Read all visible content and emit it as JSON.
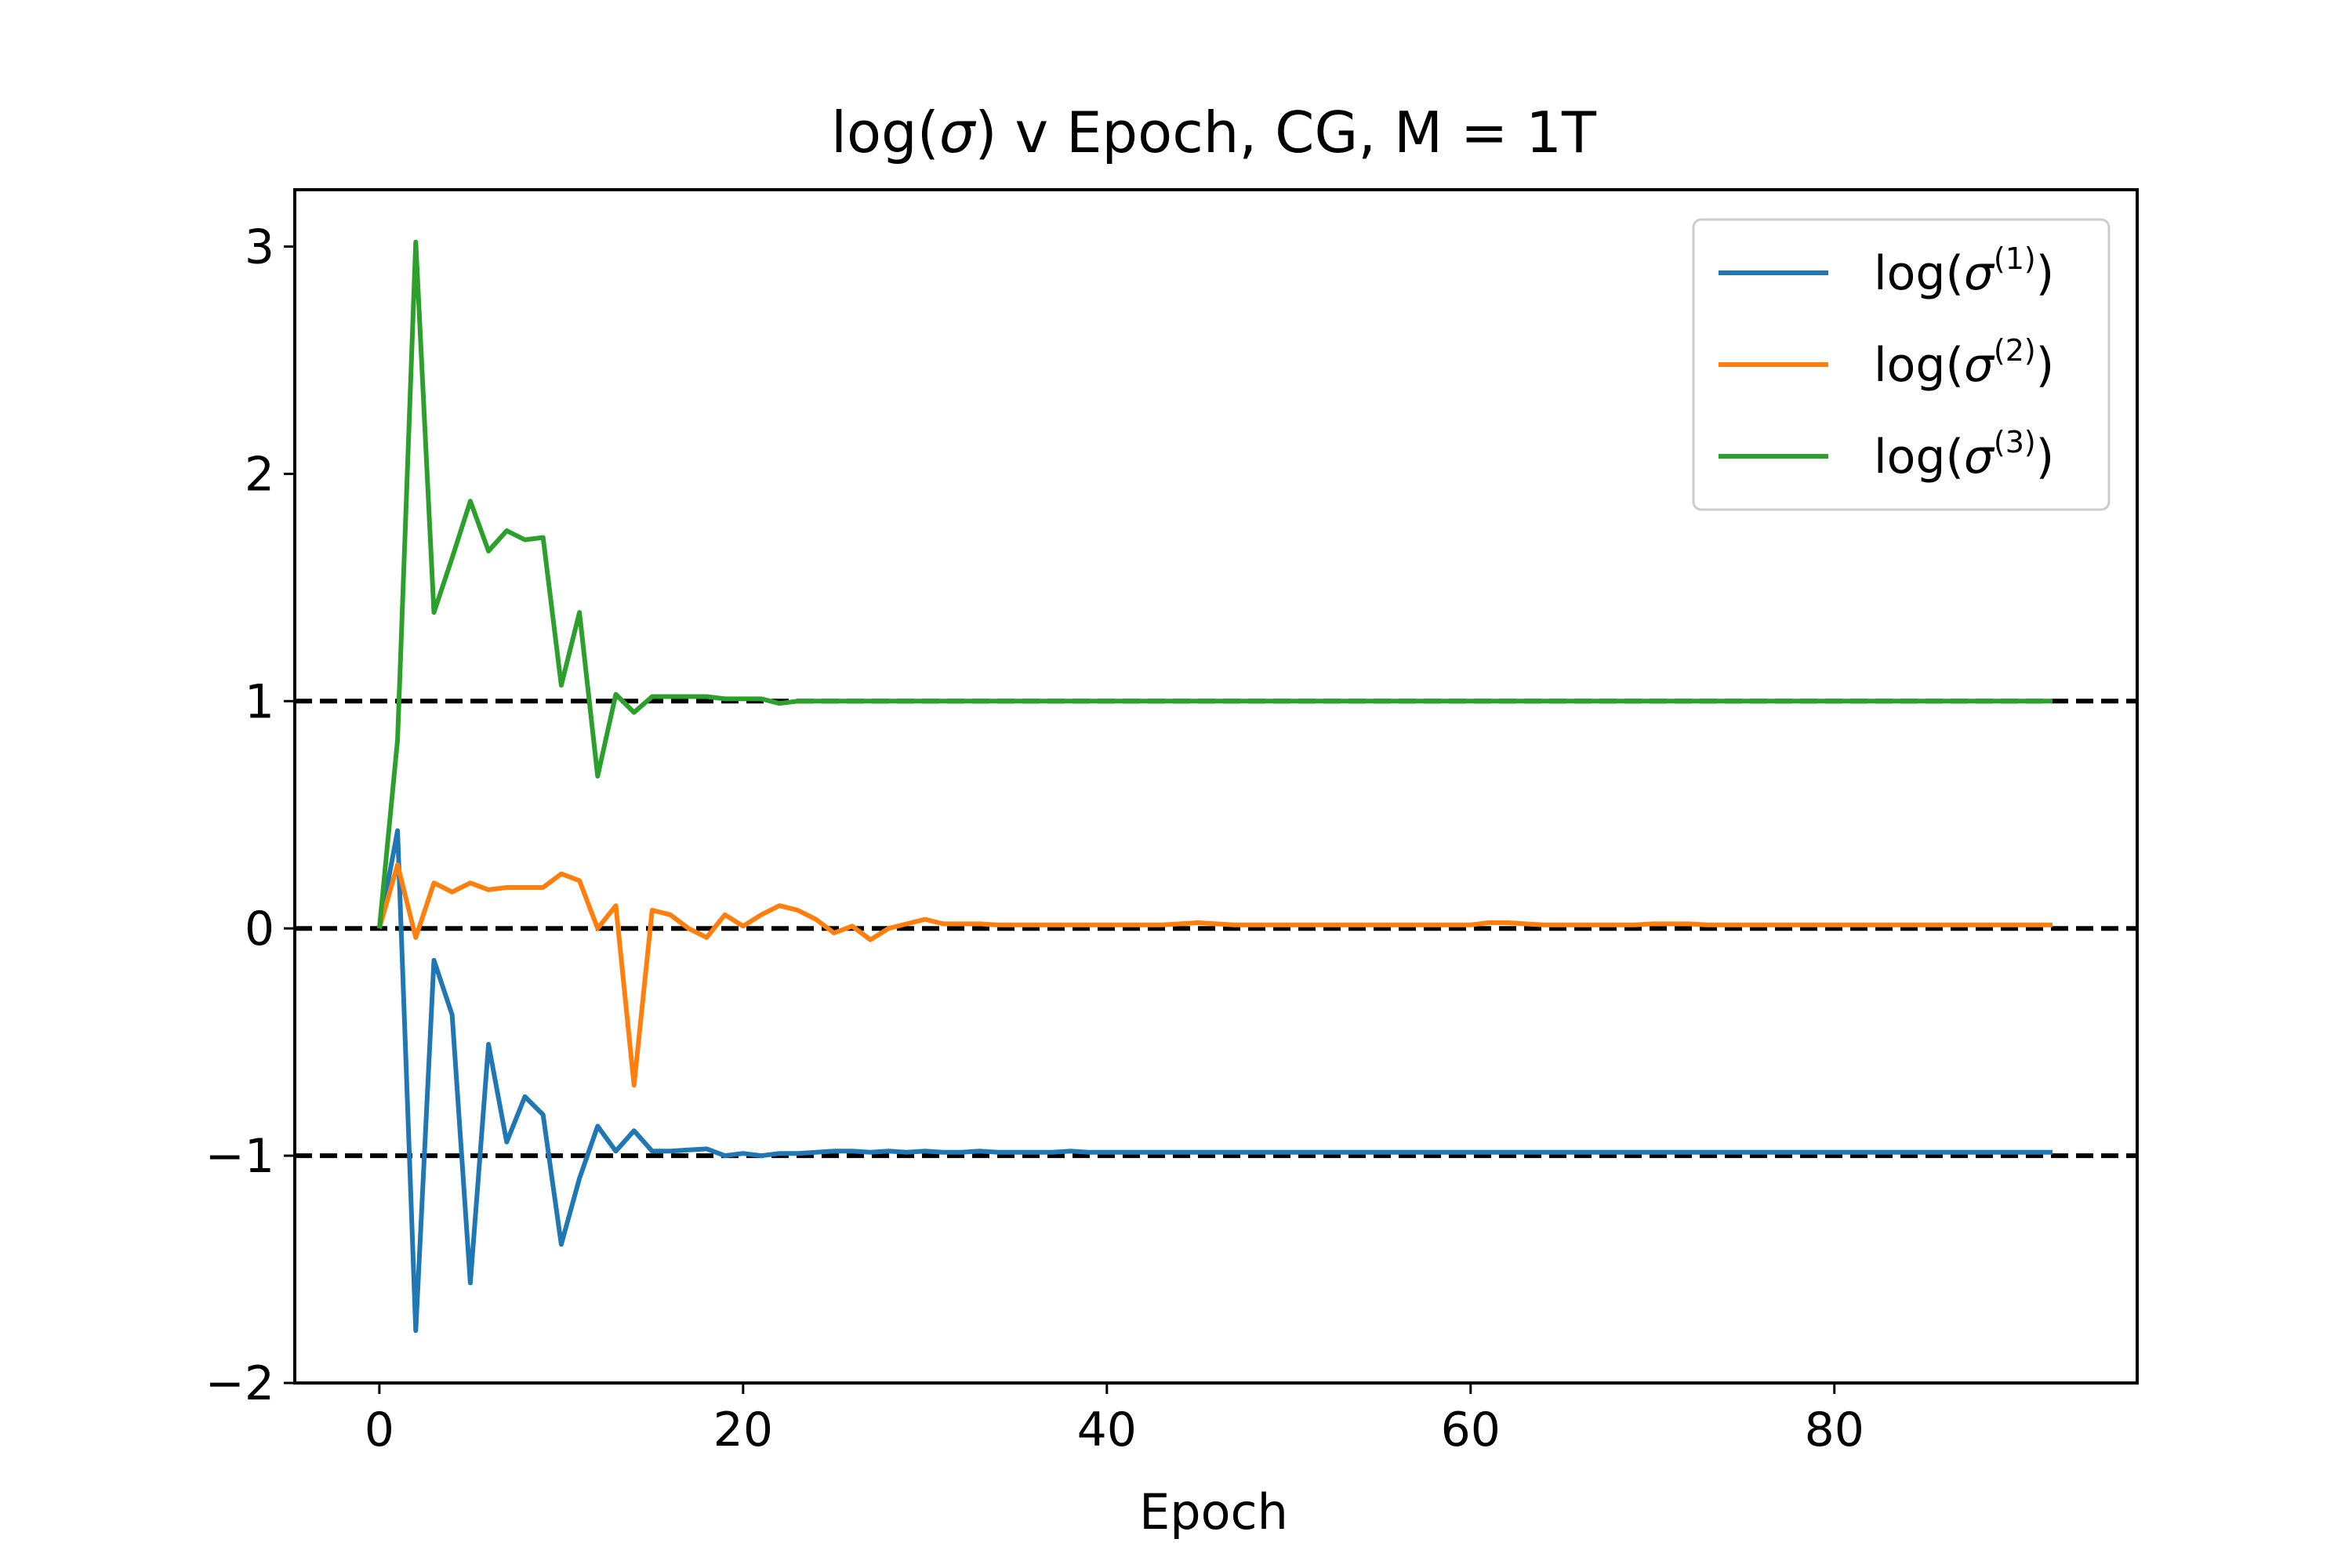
{
  "chart_data": {
    "type": "line",
    "title_parts": {
      "pre": "log(",
      "sigma": "σ",
      "post": ") v Epoch, CG, M = 1T"
    },
    "xlabel": "Epoch",
    "ylabel": "",
    "xlim": [
      -4.65,
      96.65
    ],
    "ylim": [
      -2,
      3.25
    ],
    "xticks": [
      0,
      20,
      40,
      60,
      80
    ],
    "yticks": [
      -2,
      -1,
      0,
      1,
      2,
      3
    ],
    "ytick_labels": [
      "−2",
      "−1",
      "0",
      "1",
      "2",
      "3"
    ],
    "reference_lines": [
      -1,
      0,
      1
    ],
    "grid": false,
    "legend_position": "top-right",
    "series": [
      {
        "legend": {
          "pre": "log(",
          "sigma": "σ",
          "sup": "(1)",
          "post": ")"
        },
        "color": "#1f77b4",
        "values": [
          0,
          0.43,
          -1.77,
          -0.14,
          -0.38,
          -1.56,
          -0.51,
          -0.94,
          -0.74,
          -0.82,
          -1.39,
          -1.1,
          -0.87,
          -0.98,
          -0.89,
          -0.98,
          -0.98,
          -0.975,
          -0.97,
          -1.0,
          -0.99,
          -1.0,
          -0.99,
          -0.99,
          -0.985,
          -0.98,
          -0.98,
          -0.985,
          -0.98,
          -0.985,
          -0.98,
          -0.985,
          -0.985,
          -0.98,
          -0.985,
          -0.985,
          -0.985,
          -0.985,
          -0.98,
          -0.985,
          -0.985,
          -0.985,
          -0.985,
          -0.985,
          -0.985,
          -0.985,
          -0.985,
          -0.985,
          -0.985,
          -0.985,
          -0.985,
          -0.985,
          -0.985,
          -0.985,
          -0.985,
          -0.985,
          -0.985,
          -0.985,
          -0.985,
          -0.985,
          -0.985,
          -0.985,
          -0.985,
          -0.985,
          -0.985,
          -0.985,
          -0.985,
          -0.985,
          -0.985,
          -0.985,
          -0.985,
          -0.985,
          -0.985,
          -0.985,
          -0.985,
          -0.985,
          -0.985,
          -0.985,
          -0.985,
          -0.985,
          -0.985,
          -0.985,
          -0.985,
          -0.985,
          -0.985,
          -0.985,
          -0.985,
          -0.985,
          -0.985,
          -0.985,
          -0.985,
          -0.985,
          -0.985
        ]
      },
      {
        "legend": {
          "pre": "log(",
          "sigma": "σ",
          "sup": "(2)",
          "post": ")"
        },
        "color": "#ff7f0e",
        "values": [
          0,
          0.28,
          -0.04,
          0.2,
          0.16,
          0.2,
          0.17,
          0.18,
          0.18,
          0.18,
          0.24,
          0.21,
          0.0,
          0.1,
          -0.69,
          0.08,
          0.06,
          0.0,
          -0.04,
          0.06,
          0.01,
          0.06,
          0.1,
          0.08,
          0.04,
          -0.02,
          0.01,
          -0.05,
          0.0,
          0.02,
          0.04,
          0.02,
          0.02,
          0.02,
          0.015,
          0.015,
          0.015,
          0.015,
          0.015,
          0.015,
          0.015,
          0.015,
          0.015,
          0.015,
          0.02,
          0.025,
          0.02,
          0.015,
          0.015,
          0.015,
          0.015,
          0.015,
          0.015,
          0.015,
          0.015,
          0.015,
          0.015,
          0.015,
          0.015,
          0.015,
          0.015,
          0.025,
          0.025,
          0.02,
          0.015,
          0.015,
          0.015,
          0.015,
          0.015,
          0.015,
          0.02,
          0.02,
          0.02,
          0.015,
          0.015,
          0.015,
          0.015,
          0.015,
          0.015,
          0.015,
          0.015,
          0.015,
          0.015,
          0.015,
          0.015,
          0.015,
          0.015,
          0.015,
          0.015,
          0.015,
          0.015,
          0.015,
          0.015
        ]
      },
      {
        "legend": {
          "pre": "log(",
          "sigma": "σ",
          "sup": "(3)",
          "post": ")"
        },
        "color": "#2ca02c",
        "values": [
          0,
          0.83,
          3.02,
          1.39,
          1.63,
          1.88,
          1.66,
          1.75,
          1.71,
          1.72,
          1.07,
          1.39,
          0.67,
          1.03,
          0.95,
          1.02,
          1.02,
          1.02,
          1.02,
          1.01,
          1.01,
          1.01,
          0.99,
          1.0,
          1.0,
          1.0,
          1.0,
          1.0,
          1.0,
          1.0,
          1.0,
          1.0,
          1.0,
          1.0,
          1.0,
          1.0,
          1.0,
          1.0,
          1.0,
          1.0,
          1.0,
          1.0,
          1.0,
          1.0,
          1.0,
          1.0,
          1.0,
          1.0,
          1.0,
          1.0,
          1.0,
          1.0,
          1.0,
          1.0,
          1.0,
          1.0,
          1.0,
          1.0,
          1.0,
          1.0,
          1.0,
          1.0,
          1.0,
          1.0,
          1.0,
          1.0,
          1.0,
          1.0,
          1.0,
          1.0,
          1.0,
          1.0,
          1.0,
          1.0,
          1.0,
          1.0,
          1.0,
          1.0,
          1.0,
          1.0,
          1.0,
          1.0,
          1.0,
          1.0,
          1.0,
          1.0,
          1.0,
          1.0,
          1.0,
          1.0,
          1.0,
          1.0,
          1.0
        ]
      }
    ]
  }
}
